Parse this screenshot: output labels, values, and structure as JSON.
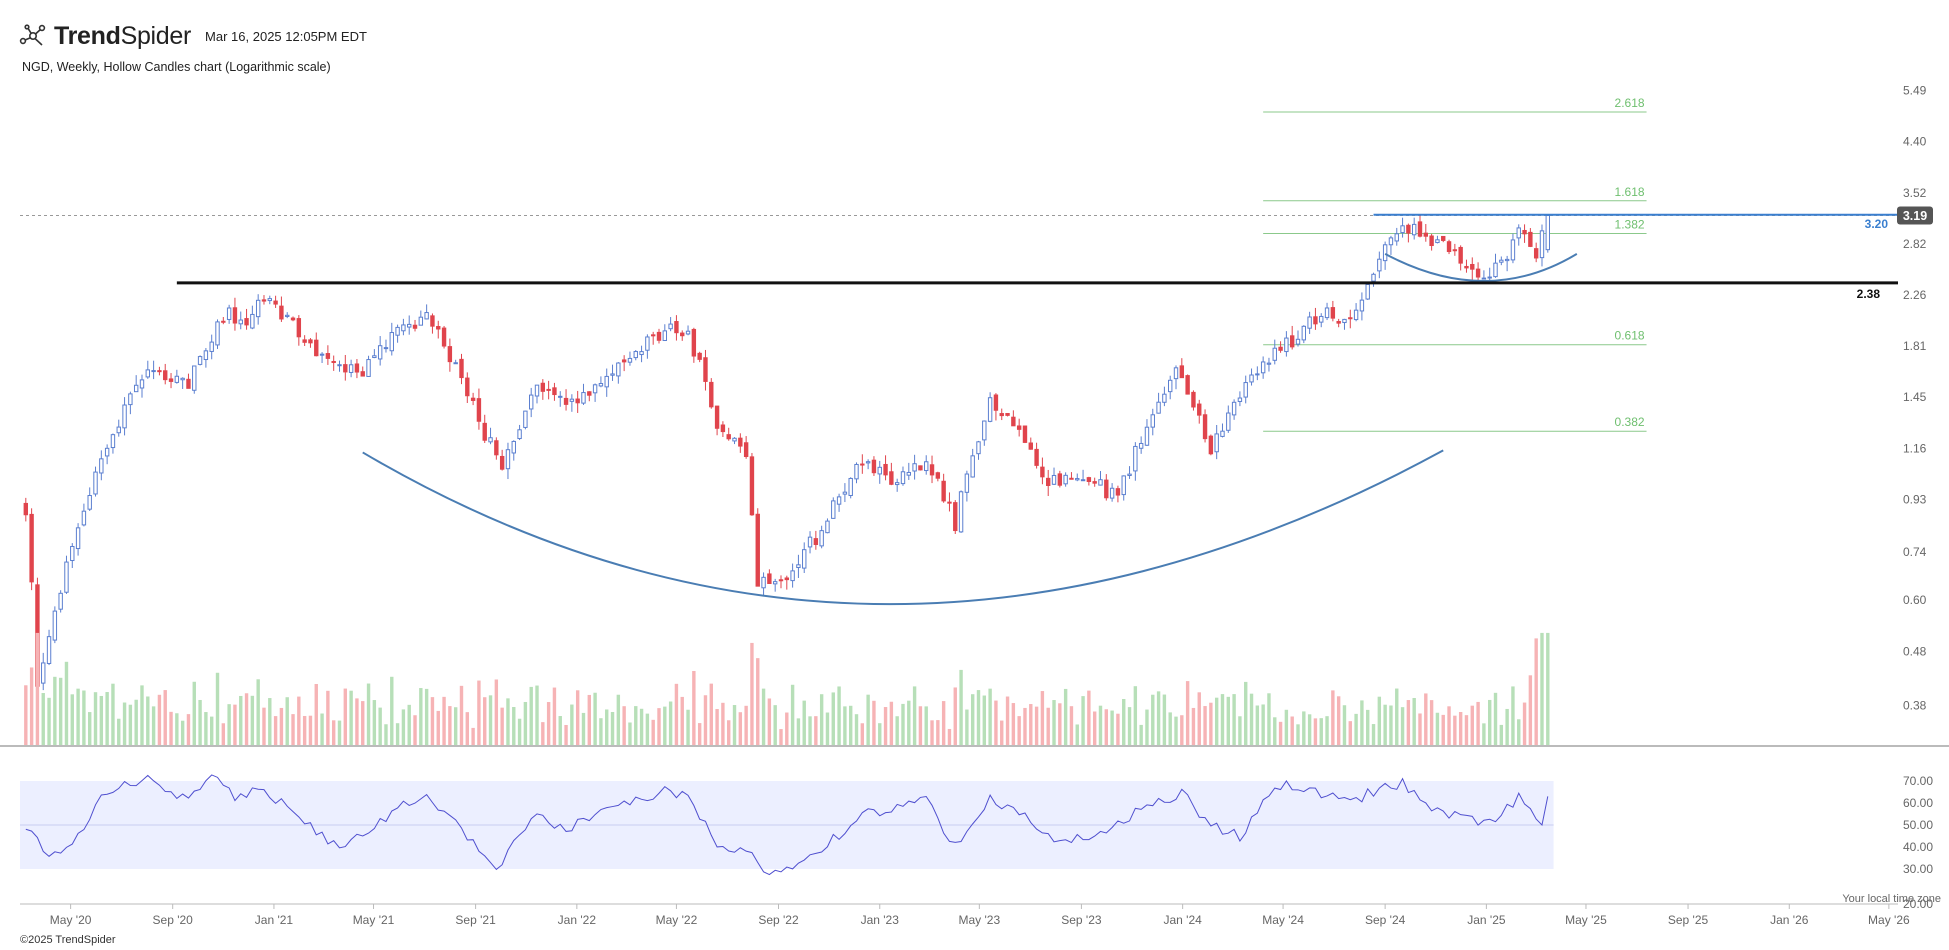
{
  "header": {
    "brand_bold": "Trend",
    "brand_light": "Spider",
    "timestamp": "Mar 16, 2025 12:05PM EDT",
    "subtitle": "NGD, Weekly, Hollow Candles chart (Logarithmic scale)"
  },
  "footer": {
    "copyright": "©2025 TrendSpider",
    "timezone_note": "Your local time zone"
  },
  "colors": {
    "up": "#5b7fd0",
    "down": "#e0444c",
    "vol_up": "#b7dfb8",
    "vol_down": "#f6b3b5",
    "rsi_line": "#4f4fcf",
    "rsi_band": "#ecefff",
    "fib": "#8bc98b",
    "fib_text": "#6fbf6f",
    "arc": "#4a7db3",
    "resistance": "#111111",
    "level_blue": "#3a7fcf",
    "price_badge": "#555555"
  },
  "chart_data": [
    {
      "type": "candlestick",
      "title": "NGD, Weekly, Hollow Candles chart (Logarithmic scale)",
      "y_scale": "log",
      "ylim": [
        0.32,
        6.0
      ],
      "y_ticks": [
        "5.49",
        "4.40",
        "3.52",
        "2.82",
        "2.26",
        "1.81",
        "1.45",
        "1.16",
        "0.93",
        "0.74",
        "0.60",
        "0.48",
        "0.38"
      ],
      "x_ticks": [
        "May '20",
        "Sep '20",
        "Jan '21",
        "May '21",
        "Sep '21",
        "Jan '22",
        "May '22",
        "Sep '22",
        "Jan '23",
        "May '23",
        "Sep '23",
        "Jan '24",
        "May '24",
        "Sep '24",
        "Jan '25",
        "May '25",
        "Sep '25",
        "Jan '26",
        "May '26"
      ],
      "x_range": [
        "2020-03-01",
        "2026-05-12"
      ],
      "price_key_points": [
        [
          "2020-03-08",
          0.9
        ],
        [
          "2020-03-22",
          0.4
        ],
        [
          "2020-05-03",
          0.76
        ],
        [
          "2020-06-14",
          1.15
        ],
        [
          "2020-08-02",
          1.65
        ],
        [
          "2020-09-20",
          1.55
        ],
        [
          "2020-11-08",
          2.1
        ],
        [
          "2020-11-29",
          1.95
        ],
        [
          "2020-12-20",
          2.25
        ],
        [
          "2021-02-14",
          1.8
        ],
        [
          "2021-04-11",
          1.6
        ],
        [
          "2021-05-30",
          1.9
        ],
        [
          "2021-07-04",
          2.05
        ],
        [
          "2021-09-05",
          1.3
        ],
        [
          "2021-10-03",
          1.05
        ],
        [
          "2021-11-14",
          1.5
        ],
        [
          "2021-12-19",
          1.4
        ],
        [
          "2022-02-06",
          1.55
        ],
        [
          "2022-04-17",
          1.95
        ],
        [
          "2022-05-15",
          1.9
        ],
        [
          "2022-06-19",
          1.3
        ],
        [
          "2022-07-24",
          1.1
        ],
        [
          "2022-08-07",
          0.66
        ],
        [
          "2022-09-11",
          0.65
        ],
        [
          "2022-10-23",
          0.82
        ],
        [
          "2022-12-11",
          1.1
        ],
        [
          "2023-01-22",
          1.0
        ],
        [
          "2023-02-26",
          1.1
        ],
        [
          "2023-04-02",
          0.84
        ],
        [
          "2023-05-14",
          1.4
        ],
        [
          "2023-06-18",
          1.25
        ],
        [
          "2023-07-23",
          1.0
        ],
        [
          "2023-08-27",
          1.05
        ],
        [
          "2023-10-15",
          0.93
        ],
        [
          "2023-12-24",
          1.6
        ],
        [
          "2024-02-04",
          1.15
        ],
        [
          "2024-03-24",
          1.6
        ],
        [
          "2024-05-12",
          1.85
        ],
        [
          "2024-06-16",
          2.1
        ],
        [
          "2024-07-14",
          2.0
        ],
        [
          "2024-08-18",
          2.45
        ],
        [
          "2024-09-08",
          2.9
        ],
        [
          "2024-09-22",
          3.05
        ],
        [
          "2024-10-27",
          2.85
        ],
        [
          "2024-12-08",
          2.6
        ],
        [
          "2025-01-05",
          2.4
        ],
        [
          "2025-02-09",
          2.95
        ],
        [
          "2025-03-02",
          2.7
        ],
        [
          "2025-03-16",
          3.19
        ]
      ],
      "annotations": {
        "last_price": 3.19,
        "last_price_label": "3.19",
        "resistance": 2.38,
        "resistance_label": "2.38",
        "blue_level": 3.2,
        "blue_level_label": "3.20",
        "fibonacci": [
          {
            "label": "2.618",
            "value": 5.0
          },
          {
            "label": "1.618",
            "value": 3.4
          },
          {
            "label": "1.382",
            "value": 2.95
          },
          {
            "label": "0.618",
            "value": 1.82
          },
          {
            "label": "0.382",
            "value": 1.25
          }
        ],
        "fib_range": [
          "2024-04-07",
          "2025-07-13"
        ],
        "cup_arc": {
          "start": [
            "2021-04-18",
            1.14
          ],
          "bottom": [
            "2023-01-15",
            0.59
          ],
          "end": [
            "2024-11-10",
            1.15
          ]
        },
        "handle_arc": {
          "start": [
            "2024-09-01",
            2.7
          ],
          "bottom": [
            "2024-12-29",
            2.4
          ],
          "end": [
            "2025-04-20",
            2.7
          ]
        }
      }
    },
    {
      "type": "bar",
      "title": "",
      "note": "Volume (unscaled, colored by candle direction)",
      "last_bars_high": true
    },
    {
      "type": "line",
      "title": "",
      "ylim": [
        25,
        75
      ],
      "y_ticks": [
        "70.00",
        "60.00",
        "50.00",
        "40.00",
        "30.00",
        "20.00"
      ],
      "band": [
        30,
        70
      ],
      "midline": 50,
      "rsi_key_points": [
        [
          "2020-03-08",
          50
        ],
        [
          "2020-04-05",
          34
        ],
        [
          "2020-05-03",
          40
        ],
        [
          "2020-06-14",
          66
        ],
        [
          "2020-08-02",
          72
        ],
        [
          "2020-09-13",
          62
        ],
        [
          "2020-10-18",
          72
        ],
        [
          "2020-11-15",
          62
        ],
        [
          "2020-12-13",
          68
        ],
        [
          "2021-02-14",
          50
        ],
        [
          "2021-03-21",
          38
        ],
        [
          "2021-05-30",
          58
        ],
        [
          "2021-07-04",
          64
        ],
        [
          "2021-09-05",
          40
        ],
        [
          "2021-09-26",
          30
        ],
        [
          "2021-11-14",
          55
        ],
        [
          "2021-12-19",
          48
        ],
        [
          "2022-02-06",
          58
        ],
        [
          "2022-04-17",
          65
        ],
        [
          "2022-05-15",
          63
        ],
        [
          "2022-06-19",
          40
        ],
        [
          "2022-07-24",
          38
        ],
        [
          "2022-08-21",
          27
        ],
        [
          "2022-09-18",
          29
        ],
        [
          "2022-11-20",
          48
        ],
        [
          "2022-12-18",
          55
        ],
        [
          "2023-02-26",
          62
        ],
        [
          "2023-04-02",
          40
        ],
        [
          "2023-05-14",
          63
        ],
        [
          "2023-06-18",
          55
        ],
        [
          "2023-07-30",
          44
        ],
        [
          "2023-09-24",
          45
        ],
        [
          "2023-11-05",
          56
        ],
        [
          "2023-12-31",
          65
        ],
        [
          "2024-02-04",
          50
        ],
        [
          "2024-03-10",
          45
        ],
        [
          "2024-04-21",
          68
        ],
        [
          "2024-06-02",
          67
        ],
        [
          "2024-07-14",
          60
        ],
        [
          "2024-08-25",
          66
        ],
        [
          "2024-09-22",
          69
        ],
        [
          "2024-11-03",
          56
        ],
        [
          "2024-12-29",
          50
        ],
        [
          "2025-02-09",
          62
        ],
        [
          "2025-03-09",
          52
        ],
        [
          "2025-03-16",
          63
        ]
      ]
    }
  ]
}
